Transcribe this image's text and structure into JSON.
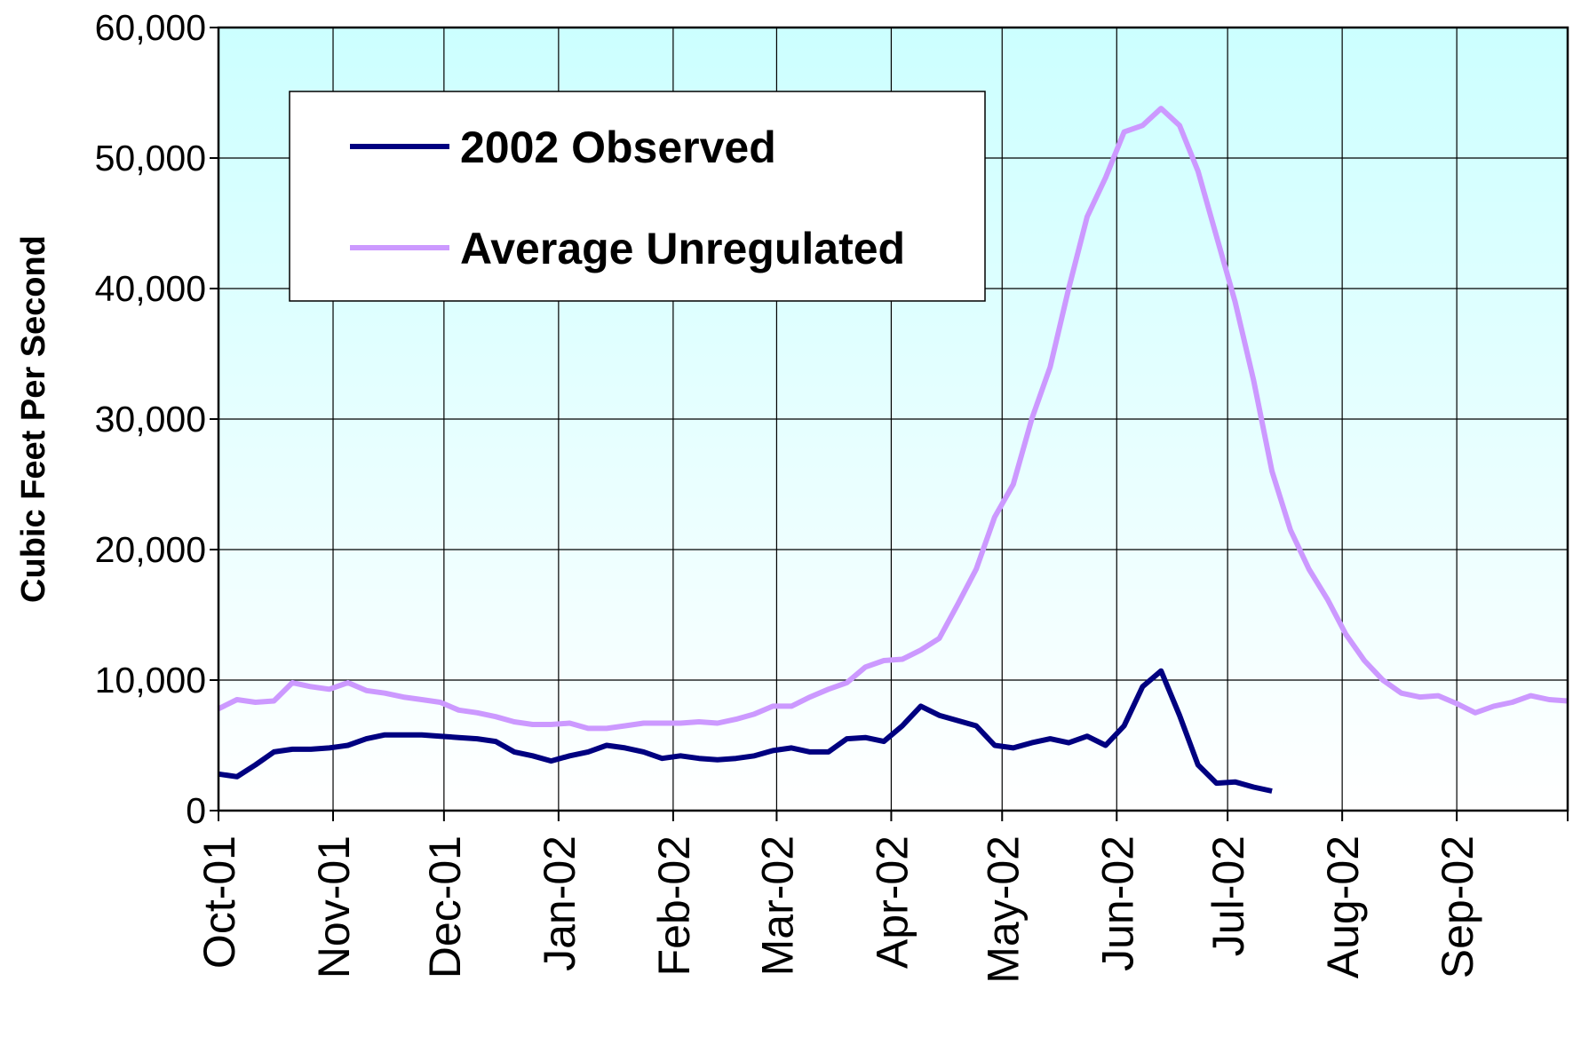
{
  "chart_data": {
    "type": "line",
    "y_label": "Cubic Feet Per Second",
    "x": [
      0,
      5,
      10,
      15,
      20,
      25,
      30,
      35,
      40,
      45,
      50,
      55,
      60,
      65,
      70,
      75,
      80,
      85,
      90,
      95,
      100,
      105,
      110,
      115,
      120,
      125,
      130,
      135,
      140,
      145,
      150,
      155,
      160,
      165,
      170,
      175,
      180,
      185,
      190,
      195,
      200,
      205,
      210,
      215,
      220,
      225,
      230,
      235,
      240,
      245,
      250,
      255,
      260,
      265,
      270,
      275,
      280,
      285,
      290,
      295,
      300,
      305,
      310,
      315,
      320,
      325,
      330,
      335,
      340,
      345,
      350,
      355,
      360,
      365
    ],
    "series": [
      {
        "name": "2002 Observed",
        "color": "#000080",
        "values": [
          2800,
          2600,
          3500,
          4500,
          4700,
          4700,
          4800,
          5000,
          5500,
          5800,
          5800,
          5800,
          5700,
          5600,
          5500,
          5300,
          4500,
          4200,
          3800,
          4200,
          4500,
          5000,
          4800,
          4500,
          4000,
          4200,
          4000,
          3900,
          4000,
          4200,
          4600,
          4800,
          4500,
          4500,
          5500,
          5600,
          5300,
          6500,
          8000,
          7300,
          6900,
          6500,
          5000,
          4800,
          5200,
          5500,
          5200,
          5700,
          5000,
          6500,
          9500,
          10700,
          7300,
          3500,
          2100,
          2200,
          1800,
          1500,
          null,
          null,
          null,
          null,
          null,
          null,
          null,
          null,
          null,
          null,
          null,
          null,
          null,
          null,
          null,
          null
        ]
      },
      {
        "name": "Average Unregulated",
        "color": "#cc99ff",
        "values": [
          7800,
          8500,
          8300,
          8400,
          9800,
          9500,
          9300,
          9800,
          9200,
          9000,
          8700,
          8500,
          8300,
          7700,
          7500,
          7200,
          6800,
          6600,
          6600,
          6700,
          6300,
          6300,
          6500,
          6700,
          6700,
          6700,
          6800,
          6700,
          7000,
          7400,
          8000,
          8000,
          8700,
          9300,
          9800,
          11000,
          11500,
          11600,
          12300,
          13200,
          15800,
          18500,
          22500,
          25000,
          30000,
          34000,
          40000,
          45500,
          48500,
          52000,
          52500,
          53800,
          52500,
          49000,
          44000,
          39000,
          33000,
          26000,
          21500,
          18500,
          16200,
          13500,
          11500,
          10000,
          9000,
          8700,
          8800,
          8200,
          7500,
          8000,
          8300,
          8800,
          8500,
          8400
        ]
      }
    ],
    "xlim": [
      0,
      365
    ],
    "xticks": [
      {
        "value": 0,
        "label": "Oct-01"
      },
      {
        "value": 31,
        "label": "Nov-01"
      },
      {
        "value": 61,
        "label": "Dec-01"
      },
      {
        "value": 92,
        "label": "Jan-02"
      },
      {
        "value": 123,
        "label": "Feb-02"
      },
      {
        "value": 151,
        "label": "Mar-02"
      },
      {
        "value": 182,
        "label": "Apr-02"
      },
      {
        "value": 212,
        "label": "May-02"
      },
      {
        "value": 243,
        "label": "Jun-02"
      },
      {
        "value": 273,
        "label": "Jul-02"
      },
      {
        "value": 304,
        "label": "Aug-02"
      },
      {
        "value": 335,
        "label": "Sep-02"
      }
    ],
    "xgrid_end": 365,
    "ylim": [
      0,
      60000
    ],
    "yticks": [
      0,
      {
        "value": 10000,
        "label": "10,000"
      },
      {
        "value": 20000,
        "label": "20,000"
      },
      {
        "value": 30000,
        "label": "30,000"
      },
      {
        "value": 40000,
        "label": "40,000"
      },
      {
        "value": 50000,
        "label": "50,000"
      },
      {
        "value": 60000,
        "label": "60,000"
      }
    ],
    "grid": true,
    "legend": "upper-left"
  }
}
